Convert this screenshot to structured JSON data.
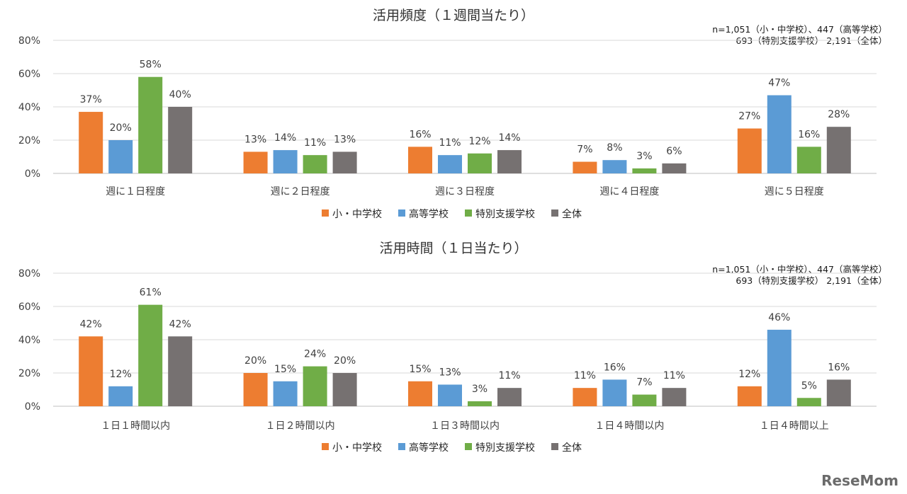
{
  "chart_data": [
    {
      "type": "bar",
      "title": "活用頻度（１週間当たり）",
      "notes": [
        "n=1,051（小・中学校）、447（高等学校）",
        "693（特別支援学校） 2,191（全体）"
      ],
      "categories": [
        "週に１日程度",
        "週に２日程度",
        "週に３日程度",
        "週に４日程度",
        "週に５日程度"
      ],
      "series": [
        {
          "name": "小・中学校",
          "color": "#ED7D31",
          "values": [
            37,
            13,
            16,
            7,
            27
          ]
        },
        {
          "name": "高等学校",
          "color": "#5B9BD5",
          "values": [
            20,
            14,
            11,
            8,
            47
          ]
        },
        {
          "name": "特別支援学校",
          "color": "#70AD47",
          "values": [
            58,
            11,
            12,
            3,
            16
          ]
        },
        {
          "name": "全体",
          "color": "#767171",
          "values": [
            40,
            13,
            14,
            6,
            28
          ]
        }
      ],
      "ylim": [
        0,
        80
      ],
      "yticks": [
        "0%",
        "20%",
        "40%",
        "60%",
        "80%"
      ],
      "grid": true,
      "legend_position": "bottom"
    },
    {
      "type": "bar",
      "title": "活用時間（１日当たり）",
      "notes": [
        "n=1,051（小・中学校）、447（高等学校）",
        "693（特別支援学校） 2,191（全体）"
      ],
      "categories": [
        "１日１時間以内",
        "１日２時間以内",
        "１日３時間以内",
        "１日４時間以内",
        "１日４時間以上"
      ],
      "series": [
        {
          "name": "小・中学校",
          "color": "#ED7D31",
          "values": [
            42,
            20,
            15,
            11,
            12
          ]
        },
        {
          "name": "高等学校",
          "color": "#5B9BD5",
          "values": [
            12,
            15,
            13,
            16,
            46
          ]
        },
        {
          "name": "特別支援学校",
          "color": "#70AD47",
          "values": [
            61,
            24,
            3,
            7,
            5
          ]
        },
        {
          "name": "全体",
          "color": "#767171",
          "values": [
            42,
            20,
            11,
            11,
            16
          ]
        }
      ],
      "ylim": [
        0,
        80
      ],
      "yticks": [
        "0%",
        "20%",
        "40%",
        "60%",
        "80%"
      ],
      "grid": true,
      "legend_position": "bottom"
    }
  ],
  "watermark": "ReseMom"
}
